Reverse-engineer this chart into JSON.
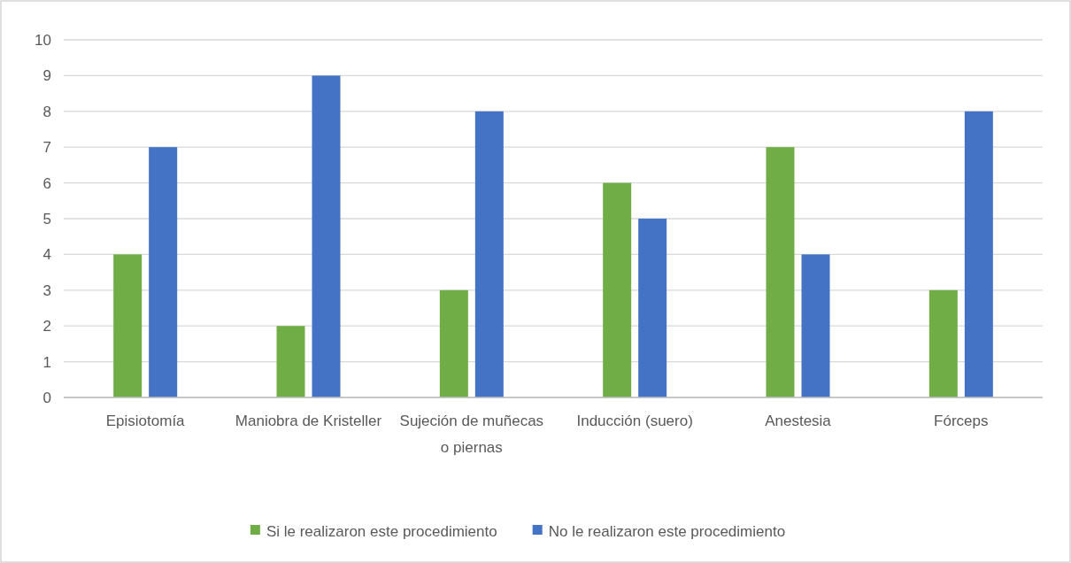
{
  "chart_data": {
    "type": "bar",
    "categories": [
      "Episiotomía",
      "Maniobra de Kristeller",
      "Sujeción de muñecas o piernas",
      "Inducción (suero)",
      "Anestesia",
      "Fórceps"
    ],
    "series": [
      {
        "name": "Si le realizaron este procedimiento",
        "color": "#70ad47",
        "values": [
          4,
          2,
          3,
          6,
          7,
          3
        ]
      },
      {
        "name": "No le realizaron este procedimiento",
        "color": "#4472c4",
        "values": [
          7,
          9,
          8,
          5,
          4,
          8
        ]
      }
    ],
    "ylim": [
      0,
      10
    ],
    "yticks": [
      0,
      1,
      2,
      3,
      4,
      5,
      6,
      7,
      8,
      9,
      10
    ],
    "grid": "y",
    "legend": "bottom"
  }
}
